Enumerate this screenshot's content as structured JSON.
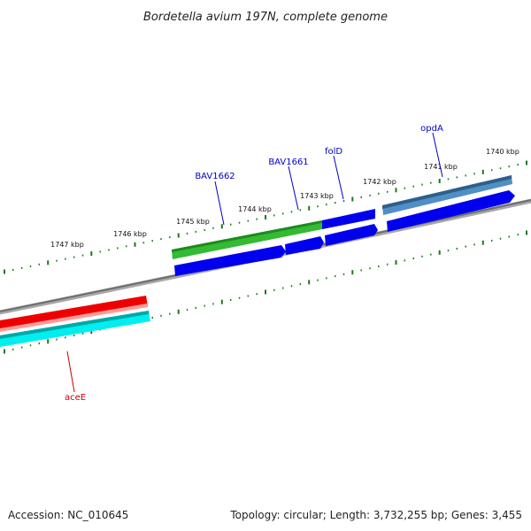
{
  "title": "Bordetella avium 197N, complete genome",
  "accession": "Accession: NC_010645",
  "summary": "Topology: circular; Length: 3,732,255 bp; Genes: 3,455",
  "ruler": {
    "tick_labels": [
      "1747 kbp",
      "1746 kbp",
      "1745 kbp",
      "1744 kbp",
      "1743 kbp",
      "1742 kbp",
      "1741 kbp",
      "1740 kbp"
    ]
  },
  "genes": [
    {
      "name": "BAV1662",
      "color": "#0000cc"
    },
    {
      "name": "BAV1661",
      "color": "#0000cc"
    },
    {
      "name": "folD",
      "color": "#0000cc"
    },
    {
      "name": "opdA",
      "color": "#0000cc"
    },
    {
      "name": "aceE",
      "color": "#cc0000"
    }
  ],
  "colors": {
    "backbone": "#808080",
    "tick": "#1a7a1a",
    "cds_blue": "#0000ee",
    "gene_green": "#33bb33",
    "gene_steelblue": "#4682b4",
    "gene_red": "#ee0000",
    "gene_cyan": "#00eeee"
  }
}
